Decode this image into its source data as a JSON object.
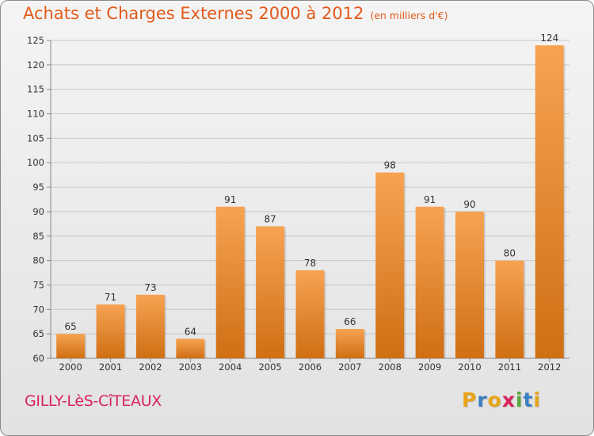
{
  "header": {
    "title": "Achats et Charges Externes 2000 à 2012",
    "unit": "(en milliers d'€)"
  },
  "footer": {
    "commune": "GILLY-LèS-CîTEAUX"
  },
  "logo": {
    "letters": [
      "P",
      "r",
      "o",
      "x",
      "i",
      "t",
      "i"
    ],
    "colors": [
      "#e8a417",
      "#3a7fc1",
      "#e8a417",
      "#d7245c",
      "#5aa83a",
      "#3a7fc1",
      "#e8a417"
    ]
  },
  "colors": {
    "title": "#e25a19",
    "bar_top": "#f6a352",
    "bar_bottom": "#d06f14",
    "commune": "#d7245c"
  },
  "chart_data": {
    "type": "bar",
    "categories": [
      "2000",
      "2001",
      "2002",
      "2003",
      "2004",
      "2005",
      "2006",
      "2007",
      "2008",
      "2009",
      "2010",
      "2011",
      "2012"
    ],
    "values": [
      65,
      71,
      73,
      64,
      91,
      87,
      78,
      66,
      98,
      91,
      90,
      80,
      124
    ],
    "ylim": [
      60,
      125
    ],
    "yticks": [
      60,
      65,
      70,
      75,
      80,
      85,
      90,
      95,
      100,
      105,
      110,
      115,
      120,
      125
    ],
    "grid": true,
    "data_labels": true
  }
}
